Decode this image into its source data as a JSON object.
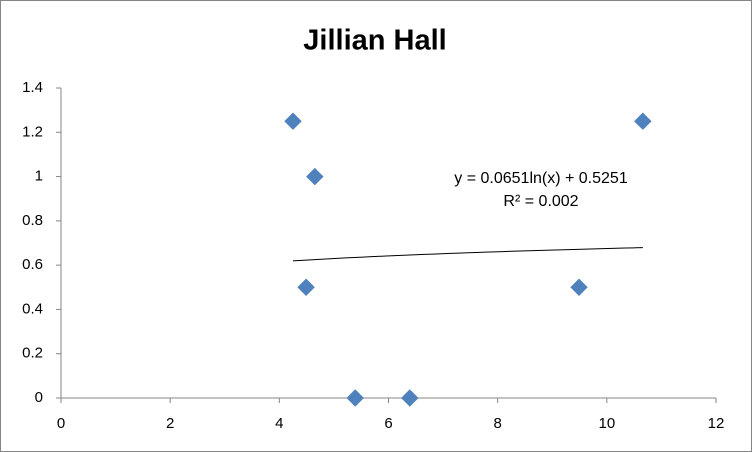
{
  "chart_data": {
    "type": "scatter",
    "title": "Jillian Hall",
    "x": [
      4.25,
      4.65,
      4.49,
      5.39,
      6.39,
      9.49,
      10.66
    ],
    "values": [
      1.25,
      1.0,
      0.5,
      0,
      0,
      0.5,
      1.25
    ],
    "color": "#4f81bd",
    "xlim": [
      0,
      12
    ],
    "xticks": [
      0,
      2,
      4,
      6,
      8,
      10,
      12
    ],
    "ylim": [
      0,
      1.4
    ],
    "yticks": [
      0,
      0.2,
      0.4,
      0.6,
      0.8,
      1,
      1.2,
      1.4
    ],
    "grid": false,
    "trendline": {
      "kind": "log",
      "slope": 0.0651,
      "intercept": 0.5251,
      "color": "#000000",
      "equation": "y = 0.0651ln(x) + 0.5251",
      "r2": "R² = 0.002"
    }
  }
}
